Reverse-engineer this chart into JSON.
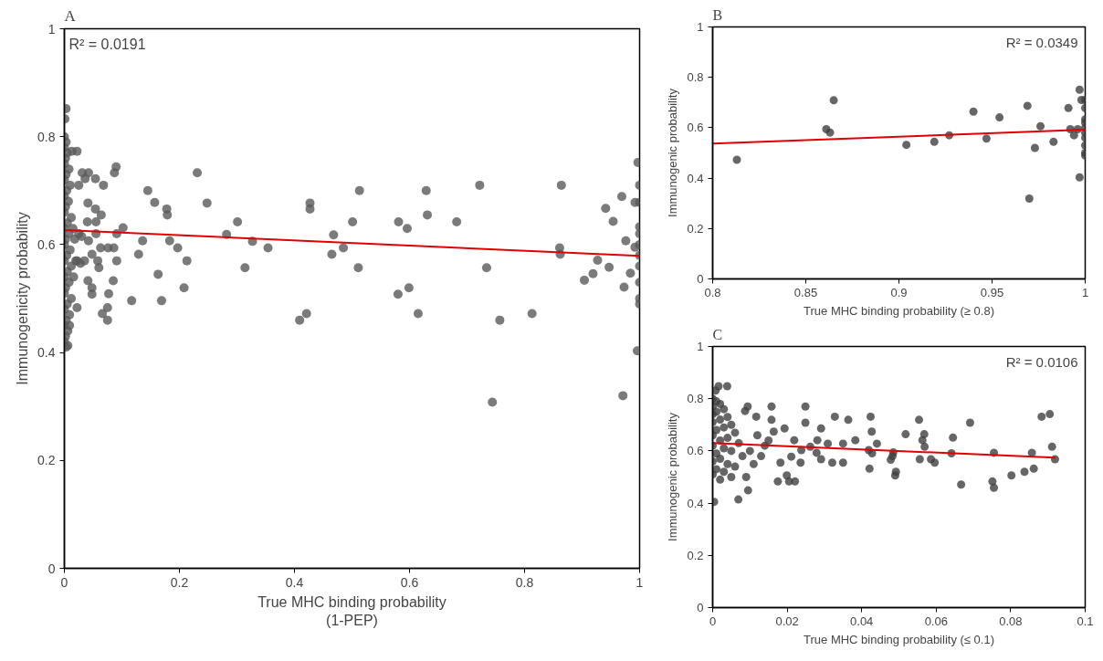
{
  "chart_data": [
    {
      "type": "scatter",
      "title": "A",
      "xlabel": "True MHC binding probability\n(1-PEP)",
      "ylabel": "Immunogenicity probability",
      "xlim": [
        0,
        1
      ],
      "ylim": [
        0,
        1
      ],
      "xticks": [
        0,
        0.2,
        0.4,
        0.6,
        0.8,
        1
      ],
      "yticks": [
        0,
        0.2,
        0.4,
        0.6,
        0.8,
        1
      ],
      "grid": false,
      "annotations": [
        "R² = 0.0191"
      ],
      "series": [
        {
          "marker": "circle",
          "color": "#5a5a5a",
          "x": [
            0.231,
            0.248,
            0.145,
            0.157,
            0.178,
            0.179,
            0.09,
            0.087,
            0.054,
            0.068,
            0.102,
            0.091,
            0.136,
            0.183,
            0.197,
            0.129,
            0.213,
            0.163,
            0.208,
            0.117,
            0.169,
            0.075,
            0.066,
            0.075,
            0.077,
            0.085,
            0.282,
            0.301,
            0.327,
            0.354,
            0.314,
            0.427,
            0.427,
            0.409,
            0.421,
            0.513,
            0.501,
            0.468,
            0.485,
            0.465,
            0.511,
            0.629,
            0.631,
            0.581,
            0.596,
            0.682,
            0.58,
            0.599,
            0.615,
            0.722,
            0.734,
            0.757,
            0.744,
            0.813,
            0.864,
            0.861,
            0.862,
            0.904,
            0.919,
            0.927,
            0.947,
            0.941,
            0.954,
            0.969,
            0.971,
            0.973,
            0.976,
            0.984,
            0.992,
            0.992,
            0.997,
            0.996,
            1,
            1,
            1,
            1,
            1,
            1,
            1,
            1,
            1,
            1,
            0.022,
            0.013,
            0.031,
            0.042,
            0.036,
            0.025,
            0.041,
            0.054,
            0.064,
            0.055,
            0.04,
            0.055,
            0.042,
            0.063,
            0.076,
            0.086,
            0.048,
            0.091,
            0.058,
            0.06,
            0.041,
            0.048,
            0.048,
            0.022,
            0.009,
            0.006,
            0,
            0.003,
            0,
            0.005,
            0.002,
            0,
            0.008,
            0.003,
            0,
            0.01,
            0.004,
            0,
            0.007,
            0.002,
            0,
            0.012,
            0.005,
            0,
            0.015,
            0.008,
            0.002,
            0.018,
            0,
            0.01,
            0.004,
            0,
            0.02,
            0.012,
            0.005,
            0,
            0.016,
            0.008,
            0.002,
            0,
            0.012,
            0.005,
            0,
            0.009,
            0.003,
            0,
            0.006,
            0.002,
            0,
            0.003,
            0.001,
            0.003,
            0.025,
            0.03,
            0.022,
            0.028,
            0.035
          ],
          "values": [
            0.733,
            0.677,
            0.7,
            0.678,
            0.666,
            0.655,
            0.744,
            0.733,
            0.722,
            0.71,
            0.631,
            0.62,
            0.607,
            0.607,
            0.594,
            0.582,
            0.57,
            0.545,
            0.52,
            0.496,
            0.496,
            0.483,
            0.472,
            0.46,
            0.509,
            0.533,
            0.619,
            0.642,
            0.606,
            0.594,
            0.557,
            0.677,
            0.666,
            0.46,
            0.472,
            0.7,
            0.642,
            0.618,
            0.594,
            0.582,
            0.557,
            0.7,
            0.655,
            0.642,
            0.63,
            0.642,
            0.508,
            0.52,
            0.472,
            0.71,
            0.557,
            0.46,
            0.308,
            0.472,
            0.71,
            0.594,
            0.582,
            0.534,
            0.546,
            0.571,
            0.558,
            0.667,
            0.643,
            0.689,
            0.32,
            0.521,
            0.607,
            0.547,
            0.678,
            0.595,
            0.752,
            0.403,
            0.71,
            0.678,
            0.633,
            0.6,
            0.58,
            0.56,
            0.53,
            0.5,
            0.49,
            0.62,
            0.773,
            0.773,
            0.733,
            0.733,
            0.722,
            0.71,
            0.677,
            0.666,
            0.655,
            0.642,
            0.642,
            0.62,
            0.607,
            0.594,
            0.594,
            0.594,
            0.582,
            0.57,
            0.57,
            0.557,
            0.533,
            0.52,
            0.508,
            0.483,
            0.45,
            0.413,
            0.8,
            0.79,
            0.78,
            0.77,
            0.76,
            0.75,
            0.74,
            0.73,
            0.72,
            0.71,
            0.7,
            0.69,
            0.68,
            0.67,
            0.66,
            0.65,
            0.64,
            0.63,
            0.63,
            0.62,
            0.61,
            0.61,
            0.6,
            0.59,
            0.58,
            0.57,
            0.57,
            0.56,
            0.55,
            0.54,
            0.54,
            0.53,
            0.52,
            0.51,
            0.5,
            0.49,
            0.48,
            0.47,
            0.46,
            0.45,
            0.44,
            0.43,
            0.42,
            0.41,
            0.833,
            0.852,
            0.62,
            0.615,
            0.57,
            0.565,
            0.57
          ]
        },
        {
          "type": "line",
          "color": "#e00000",
          "x": [
            0,
            1
          ],
          "values": [
            0.627,
            0.579
          ]
        }
      ]
    },
    {
      "type": "scatter",
      "title": "B",
      "xlabel": "True MHC binding probability (≥ 0.8)",
      "ylabel": "Immunogenic probability",
      "xlim": [
        0.8,
        1
      ],
      "ylim": [
        0,
        1
      ],
      "xticks": [
        0.8,
        0.85,
        0.9,
        0.95,
        1
      ],
      "yticks": [
        0,
        0.2,
        0.4,
        0.6,
        0.8,
        1
      ],
      "grid": false,
      "annotations": [
        "R² = 0.0349"
      ],
      "series": [
        {
          "marker": "circle",
          "color": "#404040",
          "x": [
            0.813,
            0.861,
            0.863,
            0.865,
            0.904,
            0.919,
            0.927,
            0.94,
            0.947,
            0.954,
            0.969,
            0.97,
            0.973,
            0.976,
            0.983,
            0.991,
            0.992,
            0.994,
            0.996,
            0.997,
            0.997,
            0.998,
            1,
            1,
            1,
            1,
            1,
            1,
            1,
            1,
            1,
            1
          ],
          "values": [
            0.473,
            0.594,
            0.581,
            0.709,
            0.532,
            0.544,
            0.57,
            0.664,
            0.557,
            0.641,
            0.687,
            0.319,
            0.52,
            0.606,
            0.544,
            0.678,
            0.594,
            0.57,
            0.594,
            0.403,
            0.751,
            0.71,
            0.71,
            0.678,
            0.633,
            0.62,
            0.6,
            0.58,
            0.56,
            0.53,
            0.5,
            0.49
          ]
        },
        {
          "type": "line",
          "color": "#e00000",
          "x": [
            0.8,
            1
          ],
          "values": [
            0.537,
            0.592
          ]
        }
      ]
    },
    {
      "type": "scatter",
      "title": "C",
      "xlabel": "True MHC binding probability (≤ 0.1)",
      "ylabel": "Immunogenic probability",
      "xlim": [
        0,
        0.1
      ],
      "ylim": [
        0,
        1
      ],
      "xticks": [
        0,
        0.02,
        0.04,
        0.06,
        0.08,
        0.1
      ],
      "yticks": [
        0,
        0.2,
        0.4,
        0.6,
        0.8,
        1
      ],
      "grid": false,
      "annotations": [
        "R² = 0.0106"
      ],
      "series": [
        {
          "marker": "circle",
          "color": "#404040",
          "x": [
            0.0905,
            0.0883,
            0.0911,
            0.0919,
            0.0857,
            0.0862,
            0.0837,
            0.0802,
            0.0755,
            0.0751,
            0.0755,
            0.0691,
            0.0667,
            0.0645,
            0.0641,
            0.0554,
            0.0568,
            0.0563,
            0.0569,
            0.0556,
            0.0586,
            0.0596,
            0.0518,
            0.0492,
            0.049,
            0.0483,
            0.0485,
            0.0478,
            0.0441,
            0.0428,
            0.0424,
            0.0427,
            0.0421,
            0.0419,
            0.0383,
            0.0364,
            0.035,
            0.035,
            0.0328,
            0.0321,
            0.0309,
            0.0291,
            0.0291,
            0.0281,
            0.0279,
            0.0249,
            0.0249,
            0.0262,
            0.0238,
            0.0219,
            0.0221,
            0.0205,
            0.0236,
            0.0211,
            0.0193,
            0.0158,
            0.0158,
            0.0164,
            0.0175,
            0.0182,
            0.0199,
            0.0117,
            0.0094,
            0.0087,
            0.0095,
            0.0069,
            0.0039,
            0.0016,
            0.0008,
            0.0004,
            0,
            0.001,
            0.002,
            0,
            0.003,
            0.001,
            0,
            0.004,
            0.002,
            0,
            0.005,
            0.003,
            0.001,
            0.006,
            0,
            0.004,
            0.002,
            0.007,
            0,
            0.003,
            0.005,
            0.001,
            0.008,
            0.002,
            0,
            0.004,
            0.006,
            0.001,
            0.003,
            0,
            0.005,
            0.002,
            0.012,
            0.01,
            0.014,
            0.011,
            0.013,
            0.009,
            0.015
          ],
          "values": [
            0.741,
            0.731,
            0.616,
            0.568,
            0.593,
            0.532,
            0.52,
            0.506,
            0.593,
            0.483,
            0.459,
            0.708,
            0.471,
            0.651,
            0.591,
            0.719,
            0.664,
            0.641,
            0.616,
            0.568,
            0.568,
            0.555,
            0.664,
            0.52,
            0.506,
            0.58,
            0.594,
            0.566,
            0.628,
            0.591,
            0.731,
            0.674,
            0.532,
            0.603,
            0.641,
            0.719,
            0.628,
            0.555,
            0.731,
            0.555,
            0.628,
            0.568,
            0.686,
            0.641,
            0.593,
            0.77,
            0.708,
            0.616,
            0.603,
            0.641,
            0.483,
            0.483,
            0.555,
            0.578,
            0.686,
            0.77,
            0.719,
            0.674,
            0.483,
            0.555,
            0.506,
            0.731,
            0.77,
            0.753,
            0.449,
            0.414,
            0.848,
            0.848,
            0.831,
            0.405,
            0.8,
            0.79,
            0.78,
            0.77,
            0.76,
            0.75,
            0.74,
            0.73,
            0.72,
            0.71,
            0.7,
            0.69,
            0.68,
            0.67,
            0.66,
            0.65,
            0.64,
            0.63,
            0.62,
            0.61,
            0.6,
            0.59,
            0.58,
            0.57,
            0.56,
            0.55,
            0.54,
            0.53,
            0.52,
            0.51,
            0.5,
            0.49,
            0.66,
            0.6,
            0.62,
            0.55,
            0.58,
            0.5,
            0.64
          ]
        },
        {
          "type": "line",
          "color": "#e00000",
          "x": [
            0,
            0.092
          ],
          "values": [
            0.63,
            0.574
          ]
        }
      ]
    }
  ]
}
